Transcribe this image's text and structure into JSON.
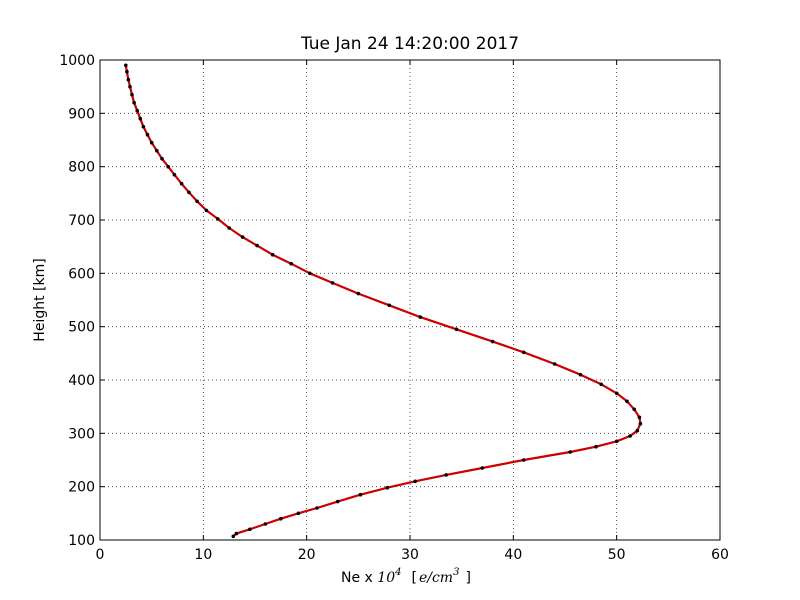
{
  "chart_data": {
    "type": "line",
    "title": "Tue Jan 24 14:20:00 2017",
    "xlabel": {
      "prefix": "Ne x ",
      "exp_base": "10",
      "exp_power": "4",
      "unit_open": "[",
      "unit_num": "e/cm",
      "unit_power": "3",
      "unit_close": "]"
    },
    "ylabel": "Height [km]",
    "xlim": [
      0,
      60
    ],
    "ylim": [
      100,
      1000
    ],
    "xticks": [
      "0",
      "10",
      "20",
      "30",
      "40",
      "50",
      "60"
    ],
    "yticks": [
      "100",
      "200",
      "300",
      "400",
      "500",
      "600",
      "700",
      "800",
      "900",
      "1000"
    ],
    "grid": true,
    "series": [
      {
        "color": "#cc0000",
        "marker_color": "#000000",
        "x": [
          12.9,
          13.2,
          14.5,
          16.0,
          17.5,
          19.2,
          21.0,
          23.0,
          25.2,
          27.8,
          30.5,
          33.5,
          37.0,
          41.0,
          45.5,
          48.0,
          50.0,
          51.3,
          52.0,
          52.3,
          52.2,
          51.7,
          51.0,
          50.0,
          48.5,
          46.5,
          44.0,
          41.0,
          38.0,
          34.5,
          31.0,
          28.0,
          25.0,
          22.5,
          20.3,
          18.5,
          16.7,
          15.2,
          13.8,
          12.5,
          11.4,
          10.3,
          9.4,
          8.6,
          7.9,
          7.2,
          6.6,
          6.0,
          5.5,
          5.0,
          4.6,
          4.2,
          3.9,
          3.6,
          3.3,
          3.1,
          2.9,
          2.75,
          2.6,
          2.5
        ],
        "y": [
          107,
          112,
          120,
          130,
          140,
          150,
          160,
          172,
          185,
          198,
          210,
          222,
          235,
          250,
          265,
          275,
          285,
          295,
          305,
          318,
          330,
          345,
          360,
          375,
          392,
          410,
          430,
          452,
          472,
          495,
          518,
          540,
          562,
          582,
          600,
          618,
          635,
          652,
          668,
          685,
          702,
          718,
          735,
          752,
          768,
          785,
          800,
          815,
          830,
          845,
          860,
          875,
          890,
          905,
          920,
          935,
          950,
          963,
          978,
          990
        ]
      }
    ]
  }
}
